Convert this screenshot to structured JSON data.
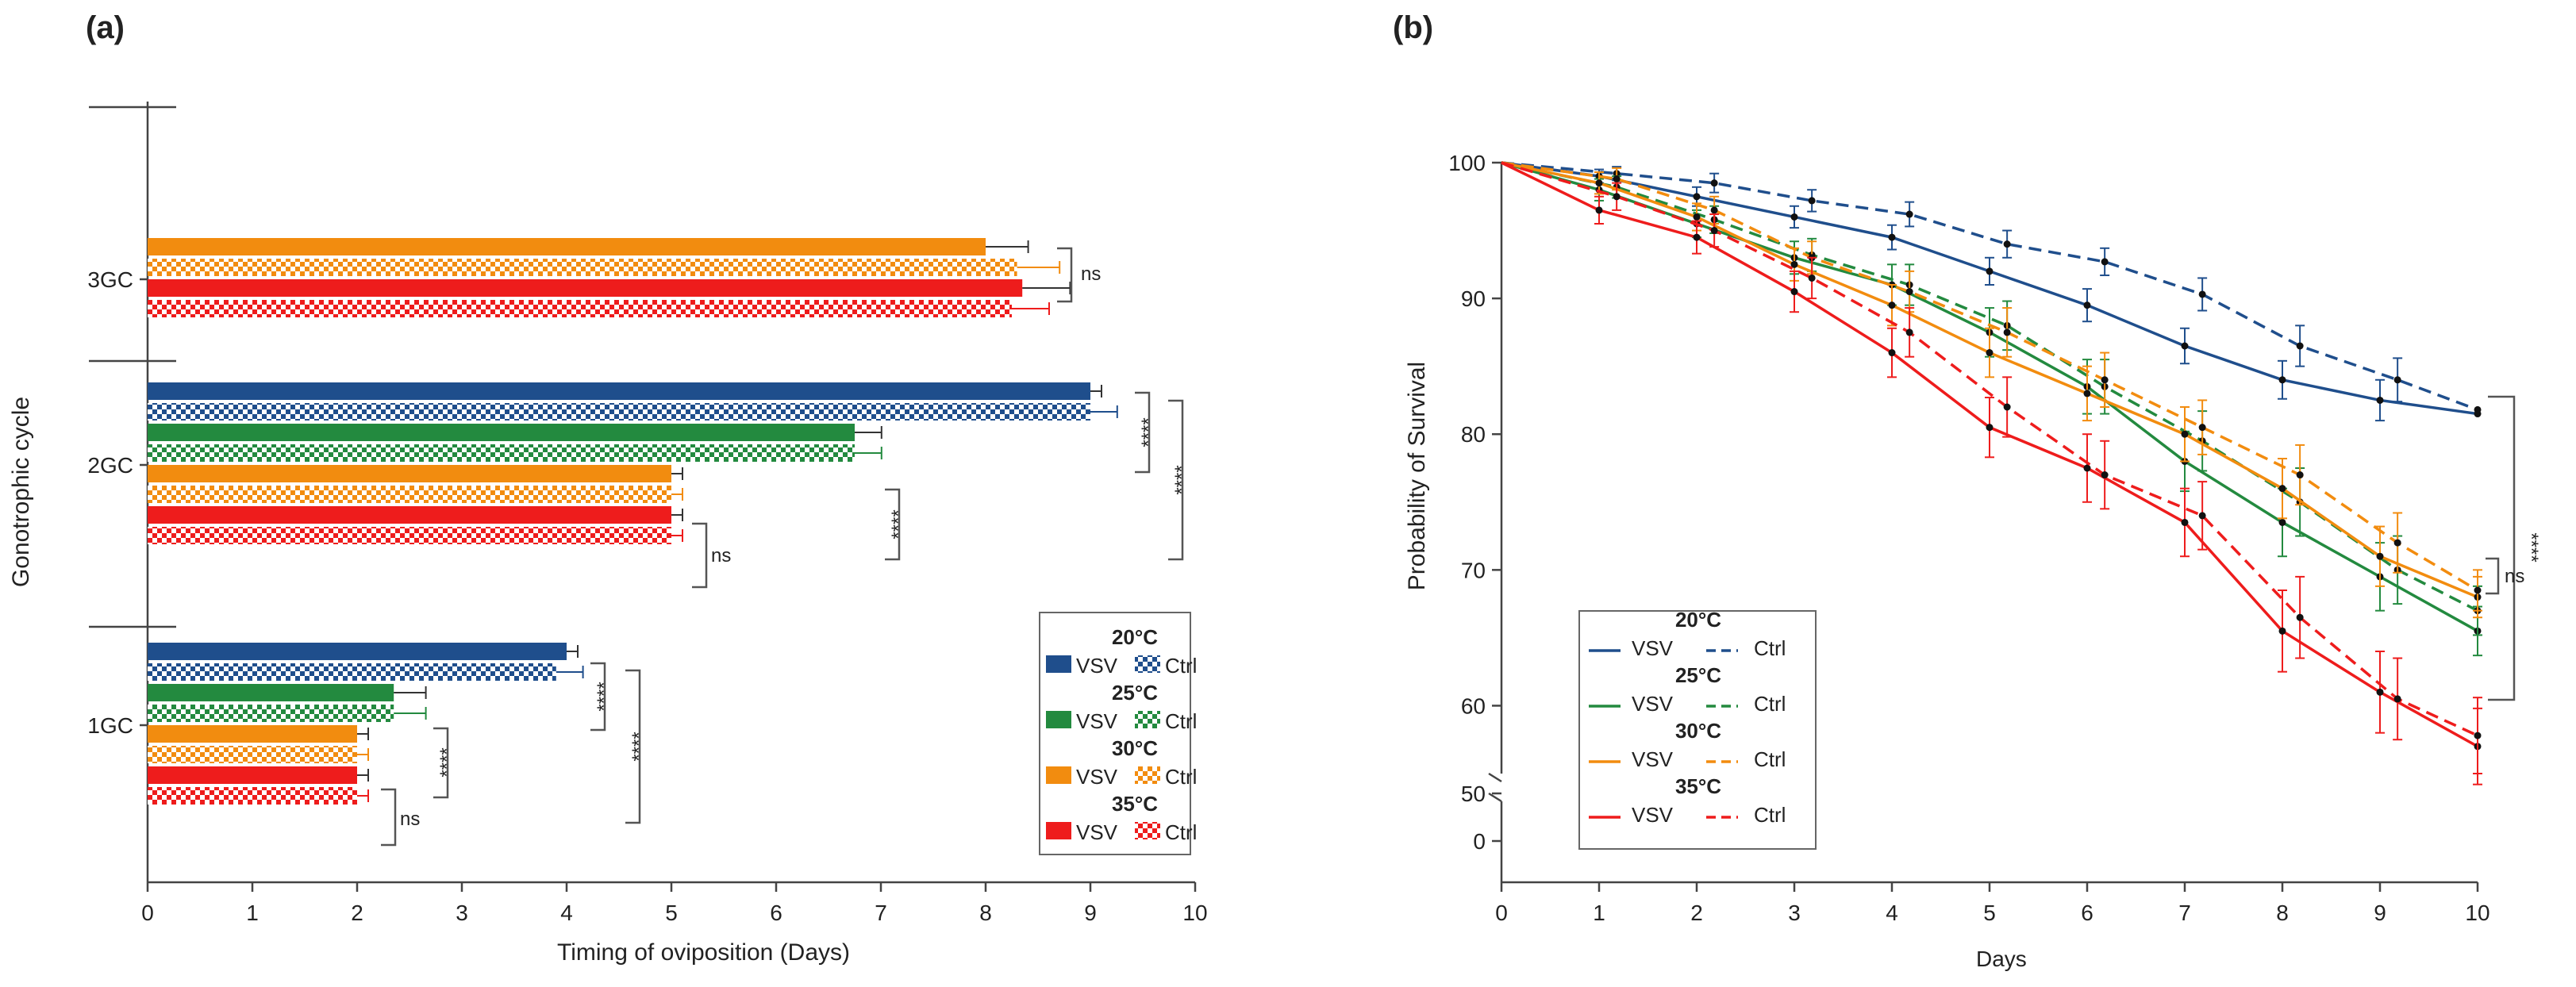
{
  "colors": {
    "c20": "#1f4e8c",
    "c25": "#238a3f",
    "c30": "#f28c0f",
    "c35": "#ee1c1c",
    "axis": "#444444",
    "text": "#222222",
    "bracket": "#555555"
  },
  "chart_data": [
    {
      "panel_label": "(a)",
      "type": "bar",
      "orientation": "horizontal",
      "xlabel": "Timing of oviposition  (Days)",
      "ylabel": "Gonotrophic cycle",
      "xlim": [
        0,
        10
      ],
      "xticks": [
        "0",
        "1",
        "2",
        "3",
        "4",
        "5",
        "6",
        "7",
        "8",
        "9",
        "10"
      ],
      "groups": [
        {
          "label": "3GC",
          "bars": [
            {
              "temp": "30°C",
              "treatment": "VSV",
              "value": 8.0,
              "err": 0.3
            },
            {
              "temp": "30°C",
              "treatment": "Ctrl",
              "value": 8.3,
              "err": 0.3
            },
            {
              "temp": "35°C",
              "treatment": "VSV",
              "value": 8.35,
              "err": 0.35
            },
            {
              "temp": "35°C",
              "treatment": "Ctrl",
              "value": 8.25,
              "err": 0.25
            }
          ]
        },
        {
          "label": "2GC",
          "bars": [
            {
              "temp": "20°C",
              "treatment": "VSV",
              "value": 9.0,
              "err": 0.0
            },
            {
              "temp": "20°C",
              "treatment": "Ctrl",
              "value": 9.0,
              "err": 0.15
            },
            {
              "temp": "25°C",
              "treatment": "VSV",
              "value": 6.75,
              "err": 0.15
            },
            {
              "temp": "25°C",
              "treatment": "Ctrl",
              "value": 6.75,
              "err": 0.15
            },
            {
              "temp": "30°C",
              "treatment": "VSV",
              "value": 5.0,
              "err": 0.0
            },
            {
              "temp": "30°C",
              "treatment": "Ctrl",
              "value": 5.0,
              "err": 0.0
            },
            {
              "temp": "35°C",
              "treatment": "VSV",
              "value": 5.0,
              "err": 0.0
            },
            {
              "temp": "35°C",
              "treatment": "Ctrl",
              "value": 5.0,
              "err": 0.0
            }
          ]
        },
        {
          "label": "1GC",
          "bars": [
            {
              "temp": "20°C",
              "treatment": "VSV",
              "value": 4.0,
              "err": 0.0
            },
            {
              "temp": "20°C",
              "treatment": "Ctrl",
              "value": 3.9,
              "err": 0.15
            },
            {
              "temp": "25°C",
              "treatment": "VSV",
              "value": 2.35,
              "err": 0.2
            },
            {
              "temp": "25°C",
              "treatment": "Ctrl",
              "value": 2.35,
              "err": 0.2
            },
            {
              "temp": "30°C",
              "treatment": "VSV",
              "value": 2.0,
              "err": 0.0
            },
            {
              "temp": "30°C",
              "treatment": "Ctrl",
              "value": 2.0,
              "err": 0.0
            },
            {
              "temp": "35°C",
              "treatment": "VSV",
              "value": 2.0,
              "err": 0.0
            },
            {
              "temp": "35°C",
              "treatment": "Ctrl",
              "value": 2.0,
              "err": 0.0
            }
          ]
        }
      ],
      "significance": [
        {
          "group": "3GC",
          "label": "ns"
        },
        {
          "group": "2GC",
          "label": "****"
        },
        {
          "group": "2GC",
          "label": "****"
        },
        {
          "group": "2GC",
          "label": "****"
        },
        {
          "group": "2GC",
          "label": "ns"
        },
        {
          "group": "1GC",
          "label": "****"
        },
        {
          "group": "1GC",
          "label": "****"
        },
        {
          "group": "1GC",
          "label": "****"
        },
        {
          "group": "1GC",
          "label": "ns"
        }
      ],
      "legend": {
        "position": "bottom-right",
        "entries": [
          {
            "temp": "20°C",
            "vsv": "VSV",
            "ctrl": "Ctrl"
          },
          {
            "temp": "25°C",
            "vsv": "VSV",
            "ctrl": "Ctrl"
          },
          {
            "temp": "30°C",
            "vsv": "VSV",
            "ctrl": "Ctrl"
          },
          {
            "temp": "35°C",
            "vsv": "VSV",
            "ctrl": "Ctrl"
          }
        ]
      }
    },
    {
      "panel_label": "(b)",
      "type": "line",
      "xlabel": "Days",
      "ylabel": "Probability of Survival",
      "xlim": [
        0,
        10
      ],
      "xticks": [
        "0",
        "1",
        "2",
        "3",
        "4",
        "5",
        "6",
        "7",
        "8",
        "9",
        "10"
      ],
      "ylim": [
        55,
        100
      ],
      "yticks": [
        "60",
        "70",
        "80",
        "90",
        "100"
      ],
      "ybreak_ticks": [
        "50",
        "0"
      ],
      "x": [
        0,
        1,
        2,
        3,
        4,
        5,
        6,
        7,
        8,
        9,
        10
      ],
      "series": [
        {
          "temp": "20°C",
          "treatment": "VSV",
          "style": "solid",
          "values": [
            100,
            99,
            97.5,
            96,
            94.5,
            92,
            89.5,
            86.5,
            84,
            82.5,
            81.5
          ],
          "err": [
            0,
            0.5,
            0.7,
            0.8,
            0.9,
            1.0,
            1.2,
            1.3,
            1.4,
            1.5,
            0
          ]
        },
        {
          "temp": "20°C",
          "treatment": "Ctrl",
          "style": "dashed",
          "values": [
            100,
            99.2,
            98.5,
            97.2,
            96.2,
            94,
            92.7,
            90.3,
            86.5,
            84,
            81.8
          ],
          "err": [
            0,
            0.5,
            0.7,
            0.8,
            0.9,
            1.0,
            1.0,
            1.2,
            1.5,
            1.6,
            0
          ]
        },
        {
          "temp": "25°C",
          "treatment": "VSV",
          "style": "solid",
          "values": [
            100,
            98,
            95.5,
            93,
            91,
            87.5,
            83.5,
            78,
            73.5,
            69.5,
            65.5
          ],
          "err": [
            0,
            0.8,
            1.0,
            1.2,
            1.5,
            1.8,
            2.0,
            2.2,
            2.5,
            2.5,
            1.8
          ]
        },
        {
          "temp": "25°C",
          "treatment": "Ctrl",
          "style": "dashed",
          "values": [
            100,
            98.2,
            95.8,
            93.2,
            91,
            88,
            83.5,
            79.5,
            75,
            70,
            67
          ],
          "err": [
            0,
            0.8,
            1.0,
            1.2,
            1.5,
            1.8,
            2.0,
            2.2,
            2.5,
            2.5,
            1.8
          ]
        },
        {
          "temp": "30°C",
          "treatment": "VSV",
          "style": "solid",
          "values": [
            100,
            98.5,
            96,
            92.5,
            89.5,
            86,
            83,
            80,
            76,
            71,
            68
          ],
          "err": [
            0,
            0.8,
            1.0,
            1.2,
            1.5,
            1.8,
            2.0,
            2.0,
            2.2,
            2.2,
            1.5
          ]
        },
        {
          "temp": "30°C",
          "treatment": "Ctrl",
          "style": "dashed",
          "values": [
            100,
            98.8,
            96.5,
            93,
            90.5,
            87.5,
            84,
            80.5,
            77,
            72,
            68.5
          ],
          "err": [
            0,
            0.8,
            1.0,
            1.2,
            1.5,
            1.8,
            2.0,
            2.0,
            2.2,
            2.2,
            1.5
          ]
        },
        {
          "temp": "35°C",
          "treatment": "VSV",
          "style": "solid",
          "values": [
            100,
            96.5,
            94.5,
            90.5,
            86,
            80.5,
            77.5,
            73.5,
            65.5,
            61,
            57
          ],
          "err": [
            0,
            1.0,
            1.2,
            1.5,
            1.8,
            2.2,
            2.5,
            2.5,
            3.0,
            3.0,
            2.8
          ]
        },
        {
          "temp": "35°C",
          "treatment": "Ctrl",
          "style": "dashed",
          "values": [
            100,
            97.5,
            95,
            91.5,
            87.5,
            82,
            77,
            74,
            66.5,
            60.5,
            57.8
          ],
          "err": [
            0,
            1.0,
            1.2,
            1.5,
            1.8,
            2.2,
            2.5,
            2.5,
            3.0,
            3.0,
            2.8
          ]
        }
      ],
      "significance": [
        {
          "label": "****"
        },
        {
          "label": "ns"
        }
      ],
      "legend": {
        "position": "bottom-left",
        "entries": [
          {
            "temp": "20°C",
            "vsv": "VSV",
            "ctrl": "Ctrl"
          },
          {
            "temp": "25°C",
            "vsv": "VSV",
            "ctrl": "Ctrl"
          },
          {
            "temp": "30°C",
            "vsv": "VSV",
            "ctrl": "Ctrl"
          },
          {
            "temp": "35°C",
            "vsv": "VSV",
            "ctrl": "Ctrl"
          }
        ]
      }
    }
  ]
}
